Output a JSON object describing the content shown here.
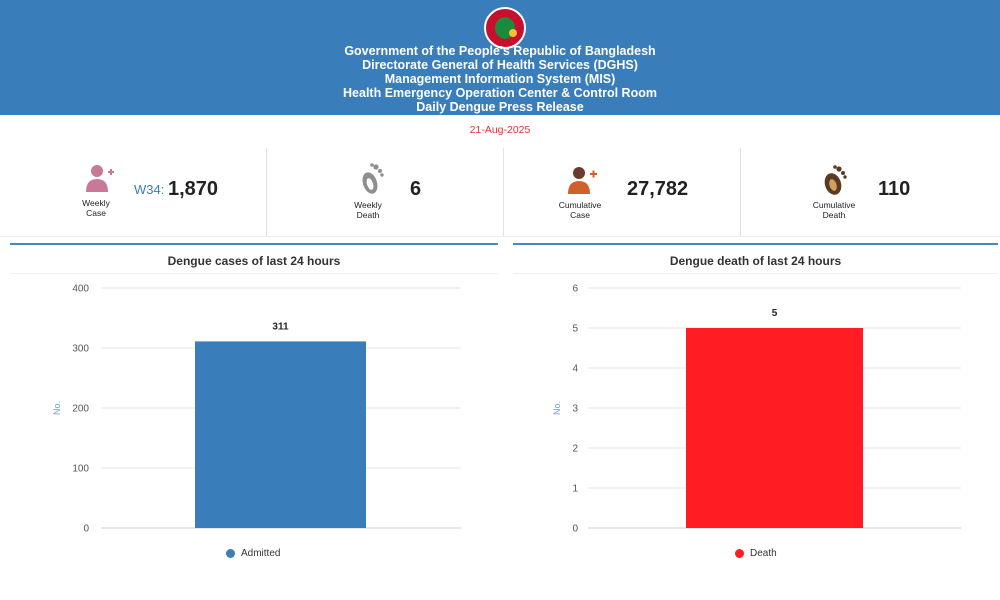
{
  "header": {
    "lines": [
      "Government of the People's Republic of Bangladesh",
      "Directorate General of Health Services (DGHS)",
      "Management Information System (MIS)",
      "Health Emergency Operation Center & Control Room",
      "Daily Dengue Press Release"
    ]
  },
  "date": "21-Aug-2025",
  "stats": {
    "weekly_case": {
      "label1": "Weekly",
      "label2": "Case",
      "prefix": "W34:",
      "value": "1,870"
    },
    "weekly_death": {
      "label1": "Weekly",
      "label2": "Death",
      "value": "6"
    },
    "cumulative_case": {
      "label1": "Cumulative",
      "label2": "Case",
      "value": "27,782"
    },
    "cumulative_death": {
      "label1": "Cumulative",
      "label2": "Death",
      "value": "110"
    }
  },
  "colors": {
    "header_bg": "#3a7dbb",
    "date": "#e8312f",
    "admitted": "#3a7dbb",
    "death": "#ff1d23",
    "person_icon": "#c77a98"
  },
  "chart_data": [
    {
      "type": "bar",
      "title": "Dengue cases of last 24 hours",
      "categories": [
        "Admitted"
      ],
      "values": [
        311
      ],
      "ylabel": "No.",
      "yticks": [
        0,
        100,
        200,
        300,
        400
      ],
      "ylim": [
        0,
        400
      ],
      "legend": "Admitted",
      "color": "#3a7dbb"
    },
    {
      "type": "bar",
      "title": "Dengue death of last 24 hours",
      "categories": [
        "Death"
      ],
      "values": [
        5
      ],
      "ylabel": "No.",
      "yticks": [
        0,
        1,
        2,
        3,
        4,
        5,
        6
      ],
      "ylim": [
        0,
        6
      ],
      "legend": "Death",
      "color": "#ff1d23"
    }
  ]
}
